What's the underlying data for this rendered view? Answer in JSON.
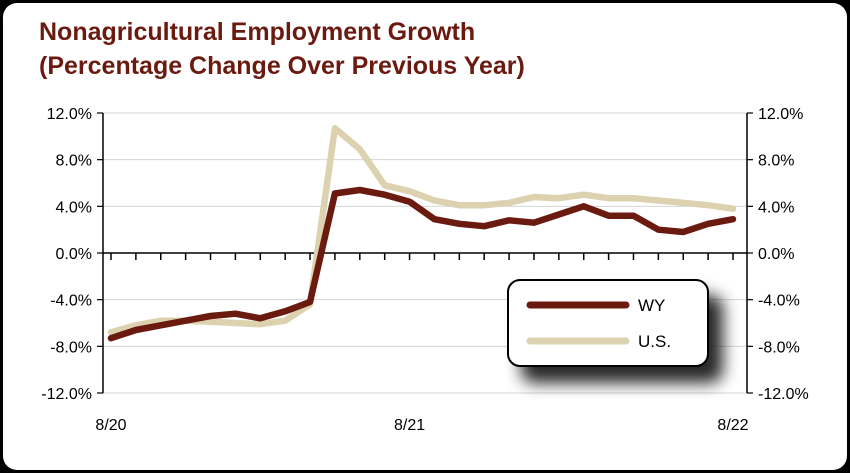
{
  "chart_data": {
    "type": "line",
    "title": "Nonagricultural Employment Growth",
    "subtitle": "(Percentage Change Over Previous Year)",
    "xlabel": "",
    "ylabel": "",
    "x_tick_labels": [
      "8/20",
      "8/21",
      "8/22"
    ],
    "y_tick_labels": [
      "12.0%",
      "8.0%",
      "4.0%",
      "0.0%",
      "-4.0%",
      "-8.0%",
      "-12.0%"
    ],
    "ylim": [
      -12,
      12
    ],
    "y_ticks": [
      12,
      8,
      4,
      0,
      -4,
      -8,
      -12
    ],
    "secondary_y_axis": true,
    "grid": "horizontal",
    "legend_position": "lower-right",
    "series": [
      {
        "name": "WY",
        "color": "#6b1a10",
        "values": [
          -7.3,
          -6.6,
          -6.2,
          -5.8,
          -5.4,
          -5.2,
          -5.6,
          -5.0,
          -4.2,
          5.1,
          5.4,
          5.0,
          4.4,
          2.9,
          2.5,
          2.3,
          2.8,
          2.6,
          3.3,
          4.0,
          3.2,
          3.2,
          2.0,
          1.8,
          2.5,
          2.9
        ]
      },
      {
        "name": "U.S.",
        "color": "#dcd2b0",
        "values": [
          -6.8,
          -6.2,
          -5.8,
          -5.8,
          -5.9,
          -6.0,
          -6.1,
          -5.8,
          -4.4,
          10.7,
          8.9,
          5.8,
          5.3,
          4.5,
          4.1,
          4.1,
          4.3,
          4.8,
          4.7,
          5.0,
          4.7,
          4.7,
          4.5,
          4.3,
          4.1,
          3.8
        ]
      }
    ]
  }
}
